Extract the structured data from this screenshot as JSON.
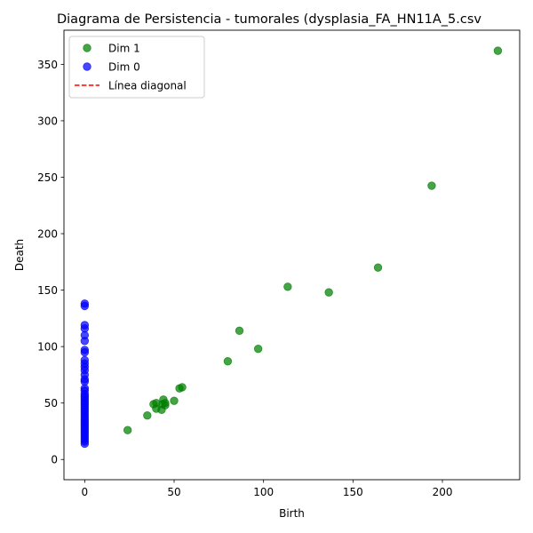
{
  "chart_data": {
    "type": "scatter",
    "title": "Diagrama de Persistencia - tumorales (dysplasia_FA_HN11A_5.csv",
    "xlabel": "Birth",
    "ylabel": "Death",
    "xlim": [
      -11.6,
      243.2
    ],
    "ylim": [
      -17.9,
      380.2
    ],
    "xticks": [
      0,
      50,
      100,
      150,
      200
    ],
    "yticks": [
      0,
      50,
      100,
      150,
      200,
      250,
      300,
      350
    ],
    "grid": false,
    "legend_position": "top-left",
    "series": [
      {
        "name": "Dim 1",
        "color": "#008000",
        "marker": "circle",
        "points": [
          [
            24,
            26
          ],
          [
            35,
            39
          ],
          [
            38.5,
            49
          ],
          [
            40,
            45
          ],
          [
            40,
            50
          ],
          [
            43,
            44
          ],
          [
            43.5,
            49
          ],
          [
            44,
            53
          ],
          [
            45,
            50
          ],
          [
            45,
            48
          ],
          [
            50,
            52
          ],
          [
            53,
            63
          ],
          [
            54.5,
            64
          ],
          [
            80,
            87
          ],
          [
            86.5,
            114
          ],
          [
            97,
            98
          ],
          [
            113.5,
            153
          ],
          [
            136.5,
            148
          ],
          [
            164,
            170
          ],
          [
            194,
            242.5
          ],
          [
            231,
            362
          ]
        ]
      },
      {
        "name": "Dim 0",
        "color": "#0000ff",
        "marker": "circle",
        "points": [
          [
            0,
            14
          ],
          [
            0,
            16
          ],
          [
            0,
            18
          ],
          [
            0,
            20
          ],
          [
            0,
            22
          ],
          [
            0,
            24
          ],
          [
            0,
            26
          ],
          [
            0,
            28
          ],
          [
            0,
            30
          ],
          [
            0,
            32
          ],
          [
            0,
            34
          ],
          [
            0,
            36
          ],
          [
            0,
            38
          ],
          [
            0,
            40
          ],
          [
            0,
            42
          ],
          [
            0,
            44
          ],
          [
            0,
            46
          ],
          [
            0,
            48
          ],
          [
            0,
            50
          ],
          [
            0,
            52
          ],
          [
            0,
            54
          ],
          [
            0,
            56
          ],
          [
            0,
            58
          ],
          [
            0,
            61
          ],
          [
            0,
            63
          ],
          [
            0,
            69
          ],
          [
            0,
            71
          ],
          [
            0,
            75
          ],
          [
            0,
            79
          ],
          [
            0,
            82
          ],
          [
            0,
            85
          ],
          [
            0,
            88
          ],
          [
            0,
            95
          ],
          [
            0,
            97
          ],
          [
            0,
            105
          ],
          [
            0,
            110
          ],
          [
            0,
            116
          ],
          [
            0,
            119
          ],
          [
            0,
            136
          ],
          [
            0,
            138
          ]
        ]
      },
      {
        "name": "Línea diagonal",
        "color": "#ff0000",
        "line_style": "dashed",
        "points": []
      }
    ]
  }
}
